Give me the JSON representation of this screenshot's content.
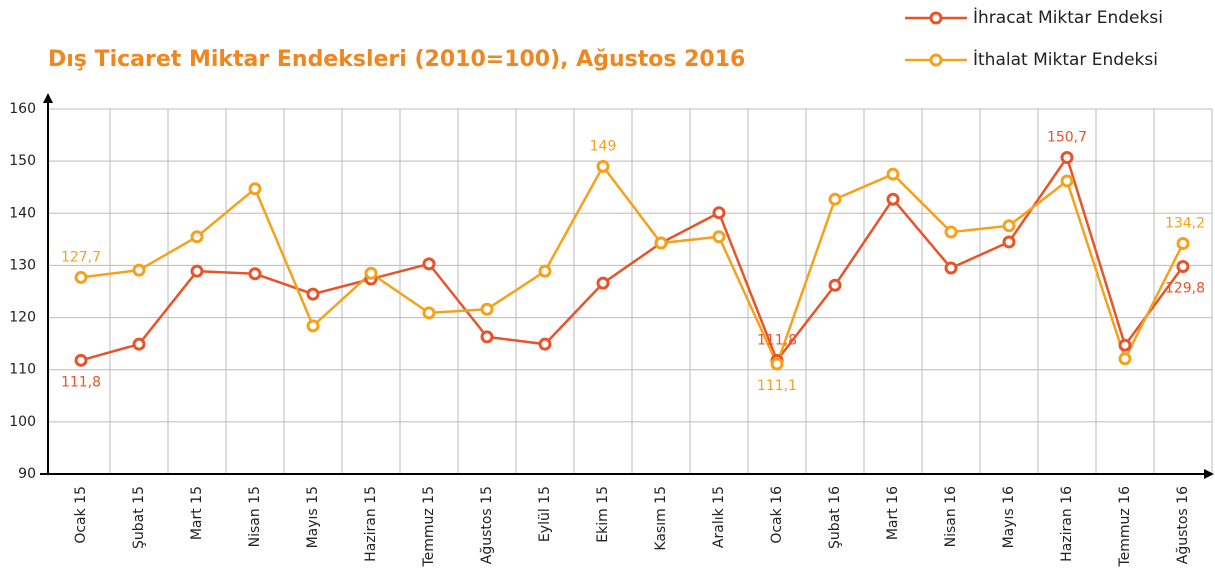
{
  "chart_data": {
    "type": "line",
    "title": "Dış Ticaret Miktar Endeksleri (2010=100), Ağustos 2016",
    "categories": [
      "Ocak 15",
      "Şubat 15",
      "Mart 15",
      "Nisan 15",
      "Mayıs 15",
      "Haziran 15",
      "Temmuz 15",
      "Ağustos 15",
      "Eylül 15",
      "Ekim 15",
      "Kasım 15",
      "Aralık 15",
      "Ocak 16",
      "Şubat 16",
      "Mart 16",
      "Nisan 16",
      "Mayıs 16",
      "Haziran 16",
      "Temmuz 16",
      "Ağustos 16"
    ],
    "series": [
      {
        "name": "İhracat Miktar Endeksi",
        "color": "#e8542a",
        "values": [
          111.8,
          114.9,
          128.9,
          128.4,
          124.5,
          127.4,
          130.3,
          116.3,
          114.9,
          126.6,
          134.3,
          140.1,
          111.8,
          126.2,
          142.7,
          129.5,
          134.5,
          150.7,
          114.7,
          129.8
        ],
        "value_labels": [
          "111,8",
          null,
          null,
          null,
          null,
          null,
          null,
          null,
          null,
          null,
          null,
          null,
          "111,8",
          null,
          null,
          null,
          null,
          "150,7",
          null,
          "129,8"
        ]
      },
      {
        "name": "İthalat Miktar Endeksi",
        "color": "#f5a11c",
        "values": [
          127.7,
          129.1,
          135.5,
          144.7,
          118.4,
          128.5,
          120.9,
          121.6,
          128.9,
          149,
          134.3,
          135.5,
          111.1,
          142.7,
          147.5,
          136.4,
          137.6,
          146.2,
          112.1,
          134.2
        ],
        "value_labels": [
          "127,7",
          null,
          null,
          null,
          null,
          null,
          null,
          null,
          null,
          "149",
          null,
          null,
          "111,1",
          null,
          null,
          null,
          null,
          null,
          null,
          "134,2"
        ]
      }
    ],
    "ylim": [
      90,
      160
    ],
    "yticks": [
      90,
      100,
      110,
      120,
      130,
      140,
      150,
      160
    ],
    "grid": true
  }
}
